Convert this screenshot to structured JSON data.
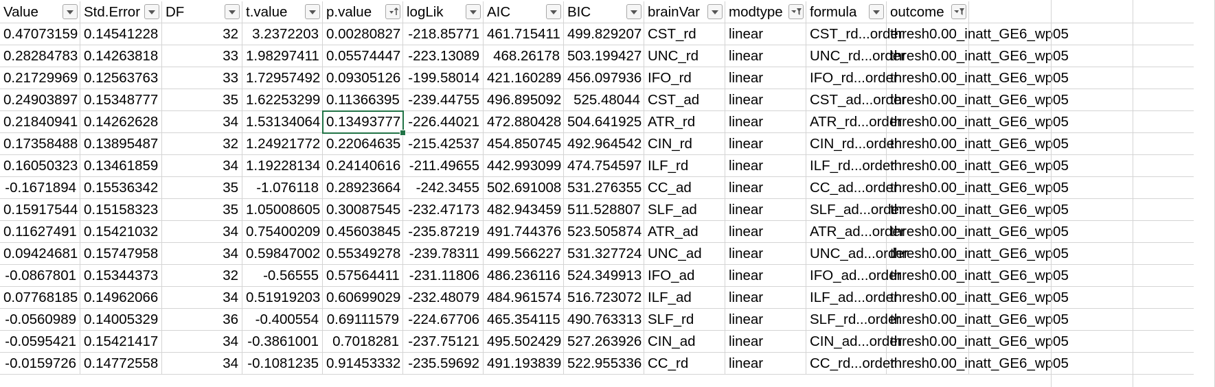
{
  "headers": [
    {
      "label": "Value",
      "filter": "dropdown"
    },
    {
      "label": "Std.Error",
      "filter": "dropdown"
    },
    {
      "label": "DF",
      "filter": "dropdown"
    },
    {
      "label": "t.value",
      "filter": "dropdown"
    },
    {
      "label": "p.value",
      "filter": "sorted-ascending"
    },
    {
      "label": "logLik",
      "filter": "dropdown"
    },
    {
      "label": "AIC",
      "filter": "dropdown"
    },
    {
      "label": "BIC",
      "filter": "dropdown"
    },
    {
      "label": "brainVar",
      "filter": "dropdown"
    },
    {
      "label": "modtype",
      "filter": "filtered"
    },
    {
      "label": "formula",
      "filter": "dropdown"
    },
    {
      "label": "outcome",
      "filter": "filtered"
    }
  ],
  "rows": [
    [
      "0.47073159",
      "0.14541228",
      "32",
      "3.2372203",
      "0.00280827",
      "-218.85771",
      "461.715411",
      "499.829207",
      "CST_rd",
      "linear",
      "CST_rd...order",
      "thresh0.00_inatt_GE6_wp05"
    ],
    [
      "0.28284783",
      "0.14263818",
      "33",
      "1.98297411",
      "0.05574447",
      "-223.13089",
      "468.26178",
      "503.199427",
      "UNC_rd",
      "linear",
      "UNC_rd...order",
      "thresh0.00_inatt_GE6_wp05"
    ],
    [
      "0.21729969",
      "0.12563763",
      "33",
      "1.72957492",
      "0.09305126",
      "-199.58014",
      "421.160289",
      "456.097936",
      "IFO_rd",
      "linear",
      "IFO_rd...order",
      "thresh0.00_inatt_GE6_wp05"
    ],
    [
      "0.24903897",
      "0.15348777",
      "35",
      "1.62253299",
      "0.11366395",
      "-239.44755",
      "496.895092",
      "525.48044",
      "CST_ad",
      "linear",
      "CST_ad...order",
      "thresh0.00_inatt_GE6_wp05"
    ],
    [
      "0.21840941",
      "0.14262628",
      "34",
      "1.53134064",
      "0.13493777",
      "-226.44021",
      "472.880428",
      "504.641925",
      "ATR_rd",
      "linear",
      "ATR_rd...order",
      "thresh0.00_inatt_GE6_wp05"
    ],
    [
      "0.17358488",
      "0.13895487",
      "32",
      "1.24921772",
      "0.22064635",
      "-215.42537",
      "454.850745",
      "492.964542",
      "CIN_rd",
      "linear",
      "CIN_rd...order",
      "thresh0.00_inatt_GE6_wp05"
    ],
    [
      "0.16050323",
      "0.13461859",
      "34",
      "1.19228134",
      "0.24140616",
      "-211.49655",
      "442.993099",
      "474.754597",
      "ILF_rd",
      "linear",
      "ILF_rd...order",
      "thresh0.00_inatt_GE6_wp05"
    ],
    [
      "-0.1671894",
      "0.15536342",
      "35",
      "-1.076118",
      "0.28923664",
      "-242.3455",
      "502.691008",
      "531.276355",
      "CC_ad",
      "linear",
      "CC_ad...order",
      "thresh0.00_inatt_GE6_wp05"
    ],
    [
      "0.15917544",
      "0.15158323",
      "35",
      "1.05008605",
      "0.30087545",
      "-232.47173",
      "482.943459",
      "511.528807",
      "SLF_ad",
      "linear",
      "SLF_ad...order",
      "thresh0.00_inatt_GE6_wp05"
    ],
    [
      "0.11627491",
      "0.15421032",
      "34",
      "0.75400209",
      "0.45603845",
      "-235.87219",
      "491.744376",
      "523.505874",
      "ATR_ad",
      "linear",
      "ATR_ad...order",
      "thresh0.00_inatt_GE6_wp05"
    ],
    [
      "0.09424681",
      "0.15747958",
      "34",
      "0.59847002",
      "0.55349278",
      "-239.78311",
      "499.566227",
      "531.327724",
      "UNC_ad",
      "linear",
      "UNC_ad...order",
      "thresh0.00_inatt_GE6_wp05"
    ],
    [
      "-0.0867801",
      "0.15344373",
      "32",
      "-0.56555",
      "0.57564411",
      "-231.11806",
      "486.236116",
      "524.349913",
      "IFO_ad",
      "linear",
      "IFO_ad...order",
      "thresh0.00_inatt_GE6_wp05"
    ],
    [
      "0.07768185",
      "0.14962066",
      "34",
      "0.51919203",
      "0.60699029",
      "-232.48079",
      "484.961574",
      "516.723072",
      "ILF_ad",
      "linear",
      "ILF_ad...order",
      "thresh0.00_inatt_GE6_wp05"
    ],
    [
      "-0.0560989",
      "0.14005329",
      "36",
      "-0.400554",
      "0.69111579",
      "-224.67706",
      "465.354115",
      "490.763313",
      "SLF_rd",
      "linear",
      "SLF_rd...order",
      "thresh0.00_inatt_GE6_wp05"
    ],
    [
      "-0.0595421",
      "0.15421417",
      "34",
      "-0.3861001",
      "0.7018281",
      "-237.75121",
      "495.502429",
      "527.263926",
      "CIN_ad",
      "linear",
      "CIN_ad...order",
      "thresh0.00_inatt_GE6_wp05"
    ],
    [
      "-0.0159726",
      "0.14772558",
      "34",
      "-0.1081235",
      "0.91453332",
      "-235.59692",
      "491.193839",
      "522.955336",
      "CC_rd",
      "linear",
      "CC_rd...order",
      "thresh0.00_inatt_GE6_wp05"
    ]
  ],
  "selected_cell": {
    "row": 4,
    "col": 4
  }
}
